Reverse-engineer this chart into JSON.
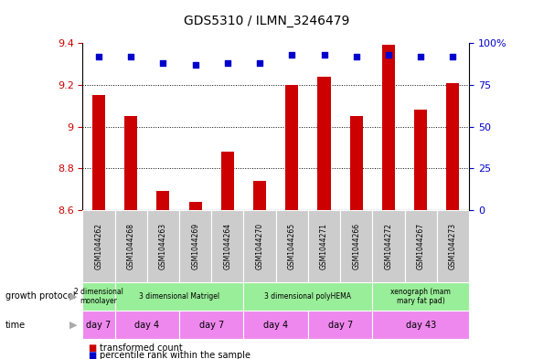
{
  "title": "GDS5310 / ILMN_3246479",
  "samples": [
    "GSM1044262",
    "GSM1044268",
    "GSM1044263",
    "GSM1044269",
    "GSM1044264",
    "GSM1044270",
    "GSM1044265",
    "GSM1044271",
    "GSM1044266",
    "GSM1044272",
    "GSM1044267",
    "GSM1044273"
  ],
  "transformed_counts": [
    9.15,
    9.05,
    8.69,
    8.64,
    8.88,
    8.74,
    9.2,
    9.24,
    9.05,
    9.39,
    9.08,
    9.21
  ],
  "percentile_ranks": [
    92,
    92,
    88,
    87,
    88,
    88,
    93,
    93,
    92,
    93,
    92,
    92
  ],
  "ylim_left": [
    8.6,
    9.4
  ],
  "ylim_right": [
    0,
    100
  ],
  "yticks_left": [
    8.6,
    8.8,
    9.0,
    9.2,
    9.4
  ],
  "yticks_right": [
    0,
    25,
    50,
    75,
    100
  ],
  "bar_color": "#cc0000",
  "dot_color": "#0000cc",
  "growth_protocol_groups": [
    {
      "label": "2 dimensional\nmonolayer",
      "start": 0,
      "end": 1
    },
    {
      "label": "3 dimensional Matrigel",
      "start": 1,
      "end": 5
    },
    {
      "label": "3 dimensional polyHEMA",
      "start": 5,
      "end": 9
    },
    {
      "label": "xenograph (mam\nmary fat pad)",
      "start": 9,
      "end": 12
    }
  ],
  "time_groups": [
    {
      "label": "day 7",
      "start": 0,
      "end": 1
    },
    {
      "label": "day 4",
      "start": 1,
      "end": 3
    },
    {
      "label": "day 7",
      "start": 3,
      "end": 5
    },
    {
      "label": "day 4",
      "start": 5,
      "end": 7
    },
    {
      "label": "day 7",
      "start": 7,
      "end": 9
    },
    {
      "label": "day 43",
      "start": 9,
      "end": 12
    }
  ],
  "tick_label_color_left": "#cc0000",
  "tick_label_color_right": "#0000cc",
  "sample_bg_color": "#cccccc",
  "gp_color": "#99ee99",
  "time_color": "#ee88ee",
  "bar_width": 0.4,
  "dot_size": 20
}
